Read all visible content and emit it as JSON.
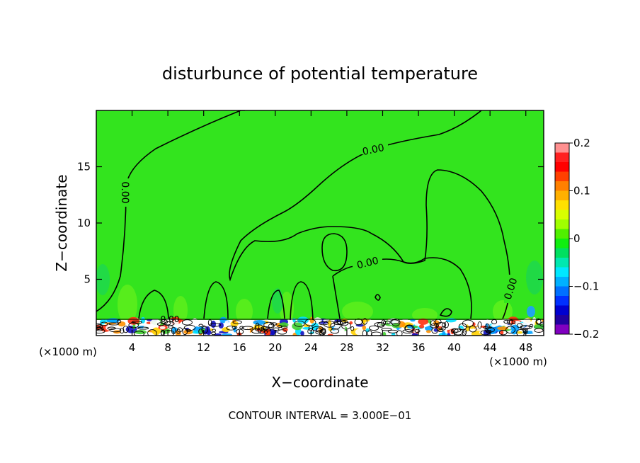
{
  "chart_data": {
    "type": "contour",
    "title": "disturbunce of potential temperature",
    "xlabel": "X−coordinate",
    "ylabel": "Z−coordinate",
    "x_unit_label": "(×1000 m)",
    "y_unit_label": "(×1000 m)",
    "footer": "CONTOUR INTERVAL = 3.000E−01",
    "xlim": [
      0,
      50
    ],
    "ylim": [
      0,
      20
    ],
    "x_ticks": [
      4,
      8,
      12,
      16,
      20,
      24,
      28,
      32,
      36,
      40,
      44,
      48
    ],
    "y_ticks": [
      5,
      10,
      15
    ],
    "contour_labels": [
      "0.00",
      "0.00",
      "0.00",
      "0.00",
      "0.00"
    ],
    "colorbar": {
      "min": -0.2,
      "max": 0.2,
      "tick_labels": [
        "0.2",
        "0.1",
        "0",
        "−0.1",
        "−0.2"
      ],
      "colors": [
        "#ff9090",
        "#ff2020",
        "#ff0000",
        "#ff4000",
        "#ff8000",
        "#ffb000",
        "#ffe000",
        "#d8ff00",
        "#a0ff00",
        "#50f000",
        "#10ee10",
        "#00e060",
        "#00e8b0",
        "#00e8ff",
        "#00b0ff",
        "#0070ff",
        "#0030ff",
        "#0000d0",
        "#2000a0",
        "#8000c0"
      ]
    }
  }
}
